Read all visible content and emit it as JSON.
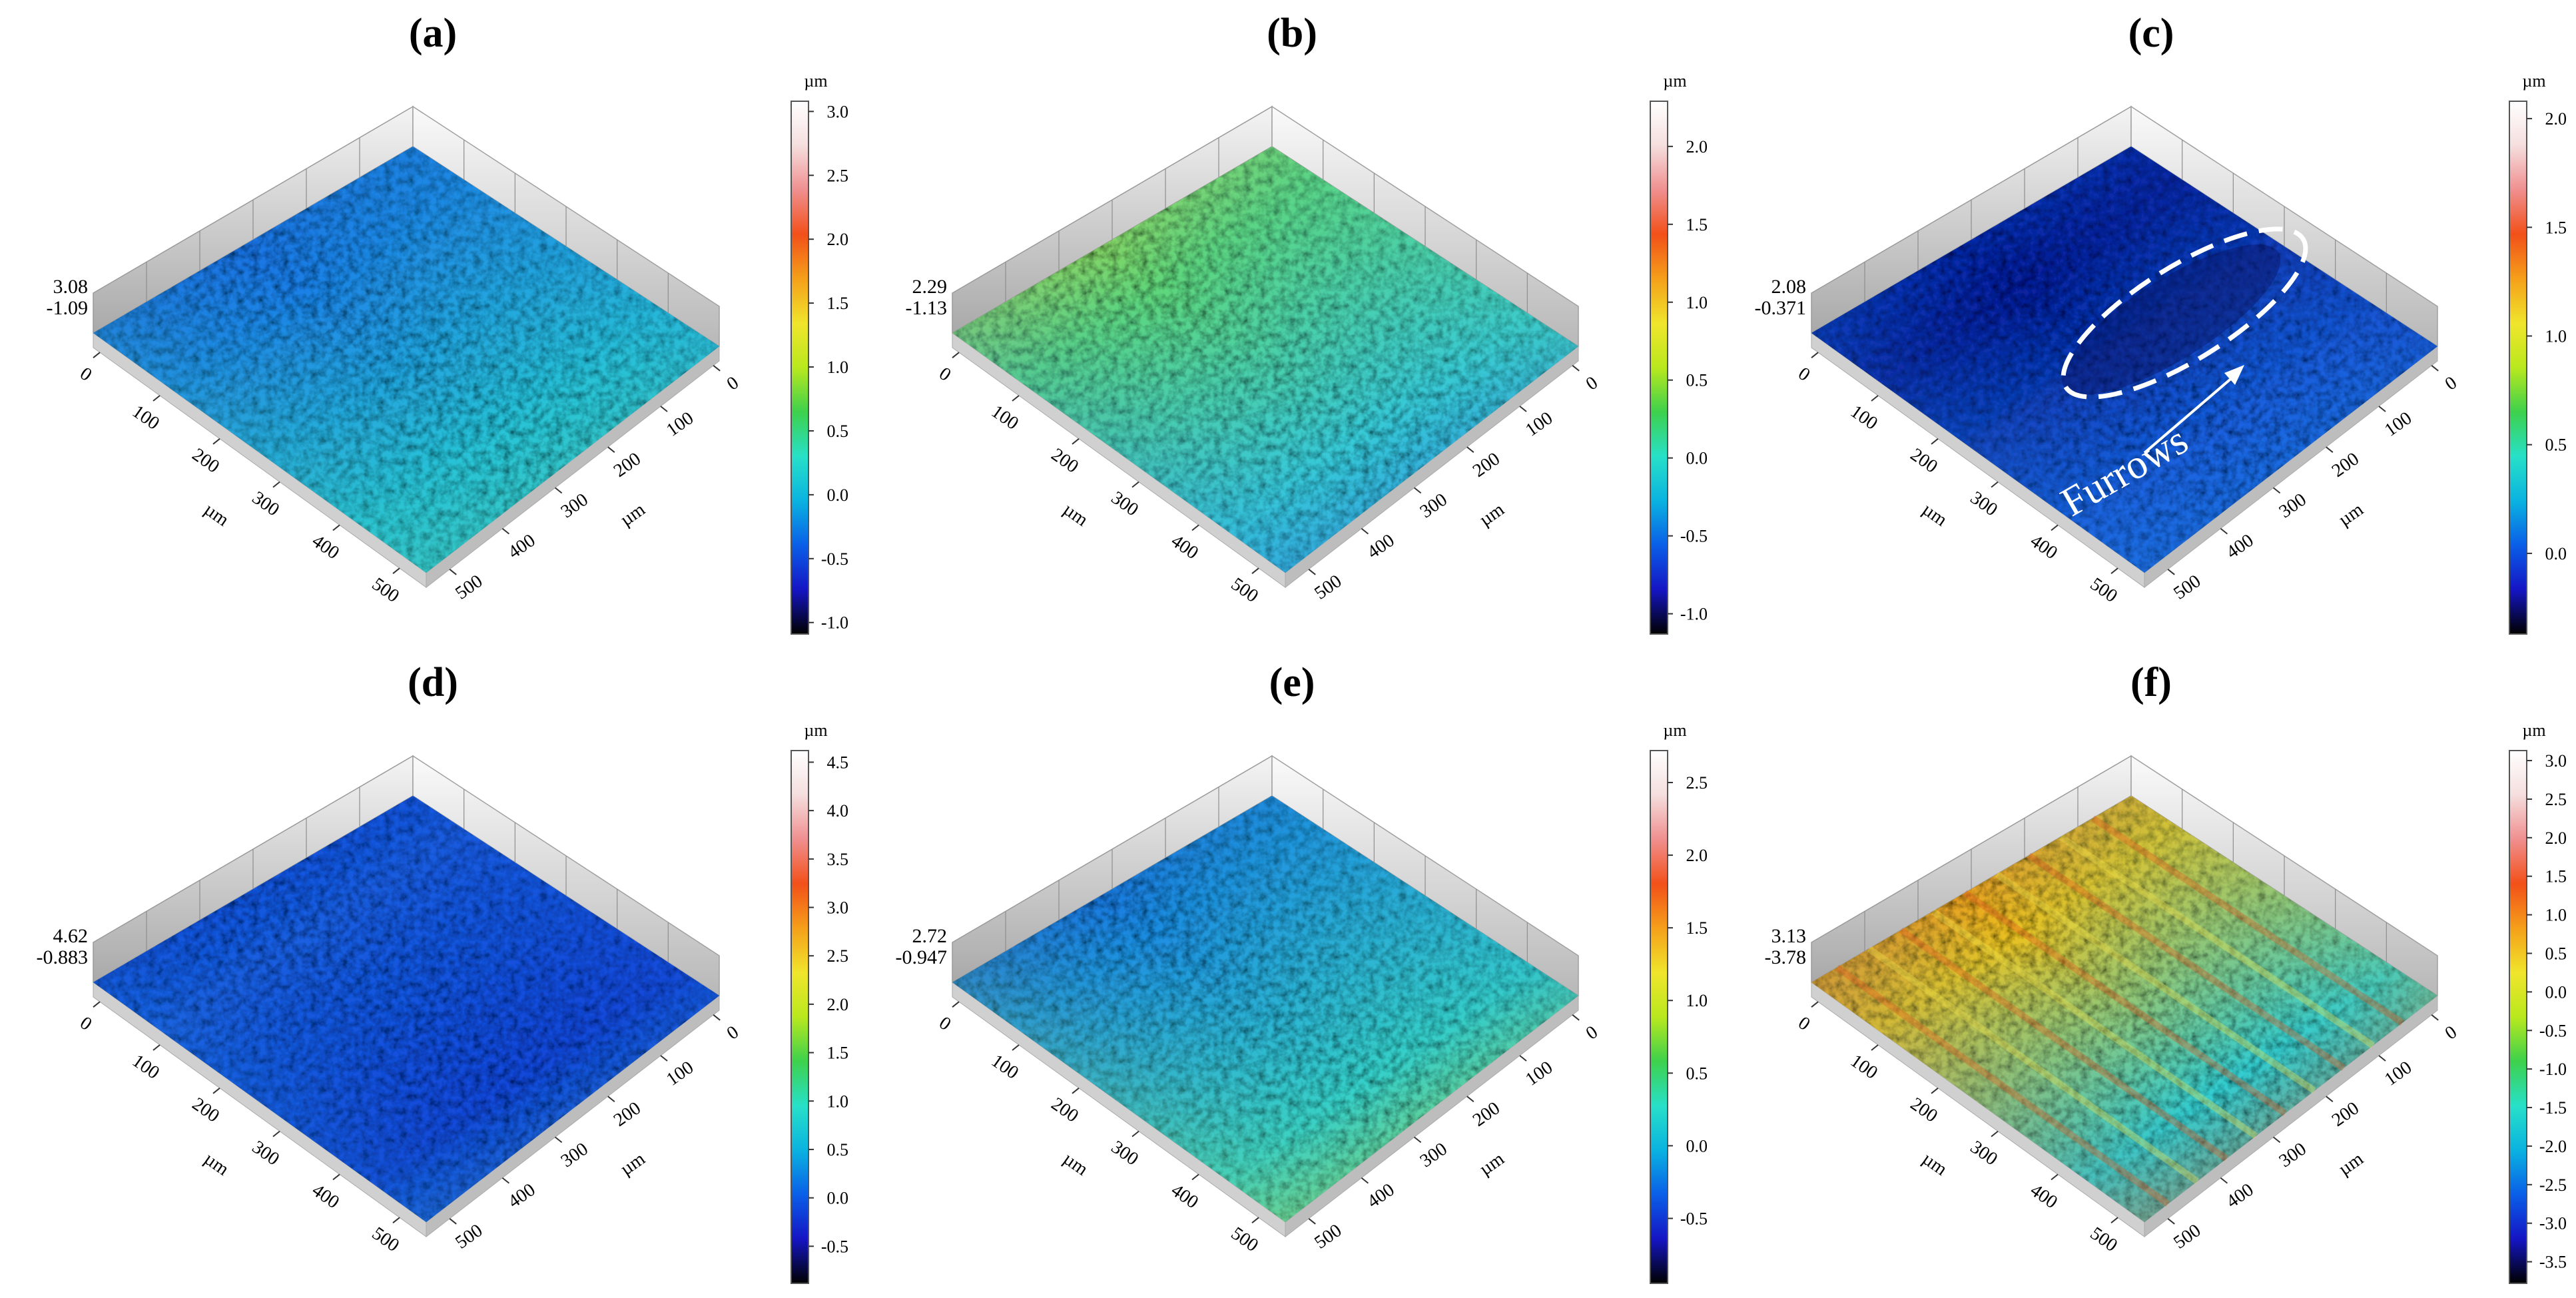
{
  "figure": {
    "panels": [
      {
        "label": "(a)",
        "zmax": "3.08",
        "zmin": "-1.09",
        "colorbar": {
          "unit": "µm",
          "min": -1.09,
          "max": 3.08,
          "ticks": [
            "3.0",
            "2.5",
            "2.0",
            "1.5",
            "1.0",
            "0.5",
            "0.0",
            "-0.5",
            "-1.0"
          ]
        }
      },
      {
        "label": "(b)",
        "zmax": "2.29",
        "zmin": "-1.13",
        "colorbar": {
          "unit": "µm",
          "min": -1.13,
          "max": 2.29,
          "ticks": [
            "2.0",
            "1.5",
            "1.0",
            "0.5",
            "0.0",
            "-0.5",
            "-1.0"
          ]
        }
      },
      {
        "label": "(c)",
        "zmax": "2.08",
        "zmin": "-0.371",
        "annotation": "Furrows",
        "colorbar": {
          "unit": "µm",
          "min": -0.371,
          "max": 2.08,
          "ticks": [
            "2.0",
            "1.5",
            "1.0",
            "0.5",
            "0.0"
          ]
        }
      },
      {
        "label": "(d)",
        "zmax": "4.62",
        "zmin": "-0.883",
        "colorbar": {
          "unit": "µm",
          "min": -0.883,
          "max": 4.62,
          "ticks": [
            "4.5",
            "4.0",
            "3.5",
            "3.0",
            "2.5",
            "2.0",
            "1.5",
            "1.0",
            "0.5",
            "0.0",
            "-0.5"
          ]
        }
      },
      {
        "label": "(e)",
        "zmax": "2.72",
        "zmin": "-0.947",
        "colorbar": {
          "unit": "µm",
          "min": -0.947,
          "max": 2.72,
          "ticks": [
            "2.5",
            "2.0",
            "1.5",
            "1.0",
            "0.5",
            "0.0",
            "-0.5"
          ]
        }
      },
      {
        "label": "(f)",
        "zmax": "3.13",
        "zmin": "-3.78",
        "colorbar": {
          "unit": "µm",
          "min": -3.78,
          "max": 3.13,
          "ticks": [
            "3.0",
            "2.5",
            "2.0",
            "1.5",
            "1.0",
            "0.5",
            "0.0",
            "-0.5",
            "-1.0",
            "-1.5",
            "-2.0",
            "-2.5",
            "-3.0",
            "-3.5"
          ]
        }
      }
    ]
  },
  "chart_data": {
    "type": "heatmap",
    "description_text": "3D surface topography maps",
    "axes": {
      "x_ticks": [
        "0",
        "100",
        "200",
        "300",
        "400",
        "500"
      ],
      "y_ticks": [
        "0",
        "100",
        "200",
        "300",
        "400",
        "500"
      ],
      "x_label": "µm",
      "y_label": "µm",
      "x_range": [
        0,
        550
      ],
      "y_range": [
        0,
        550
      ]
    },
    "colormap": [
      "#000000",
      "#1515c4",
      "#0a5fe8",
      "#0ab3e0",
      "#27e0c8",
      "#3ed14c",
      "#b9e81e",
      "#f0e52c",
      "#f59f1a",
      "#f25019",
      "#f08f8f",
      "#f5dede",
      "#ffffff"
    ],
    "surface_tints": {
      "a": [
        "#1a4fd8",
        "#1e7fe6",
        "#29c4d6",
        "#4ec9a6"
      ],
      "b": [
        "#e0d030",
        "#5fd67a",
        "#37c9d8",
        "#2b6ee6"
      ],
      "c": [
        "#1d4ed9",
        "#0b1f99",
        "#1b62e0",
        "#2a86e0"
      ],
      "d": [
        "#1238d0",
        "#1a5fe0",
        "#1747d8",
        "#24a7d8"
      ],
      "e": [
        "#1f3ed6",
        "#1f8ee0",
        "#37d0c8",
        "#c9d42e"
      ],
      "f": [
        "#e84a16",
        "#e9c224",
        "#33ccd0",
        "#f05a1a"
      ]
    }
  }
}
